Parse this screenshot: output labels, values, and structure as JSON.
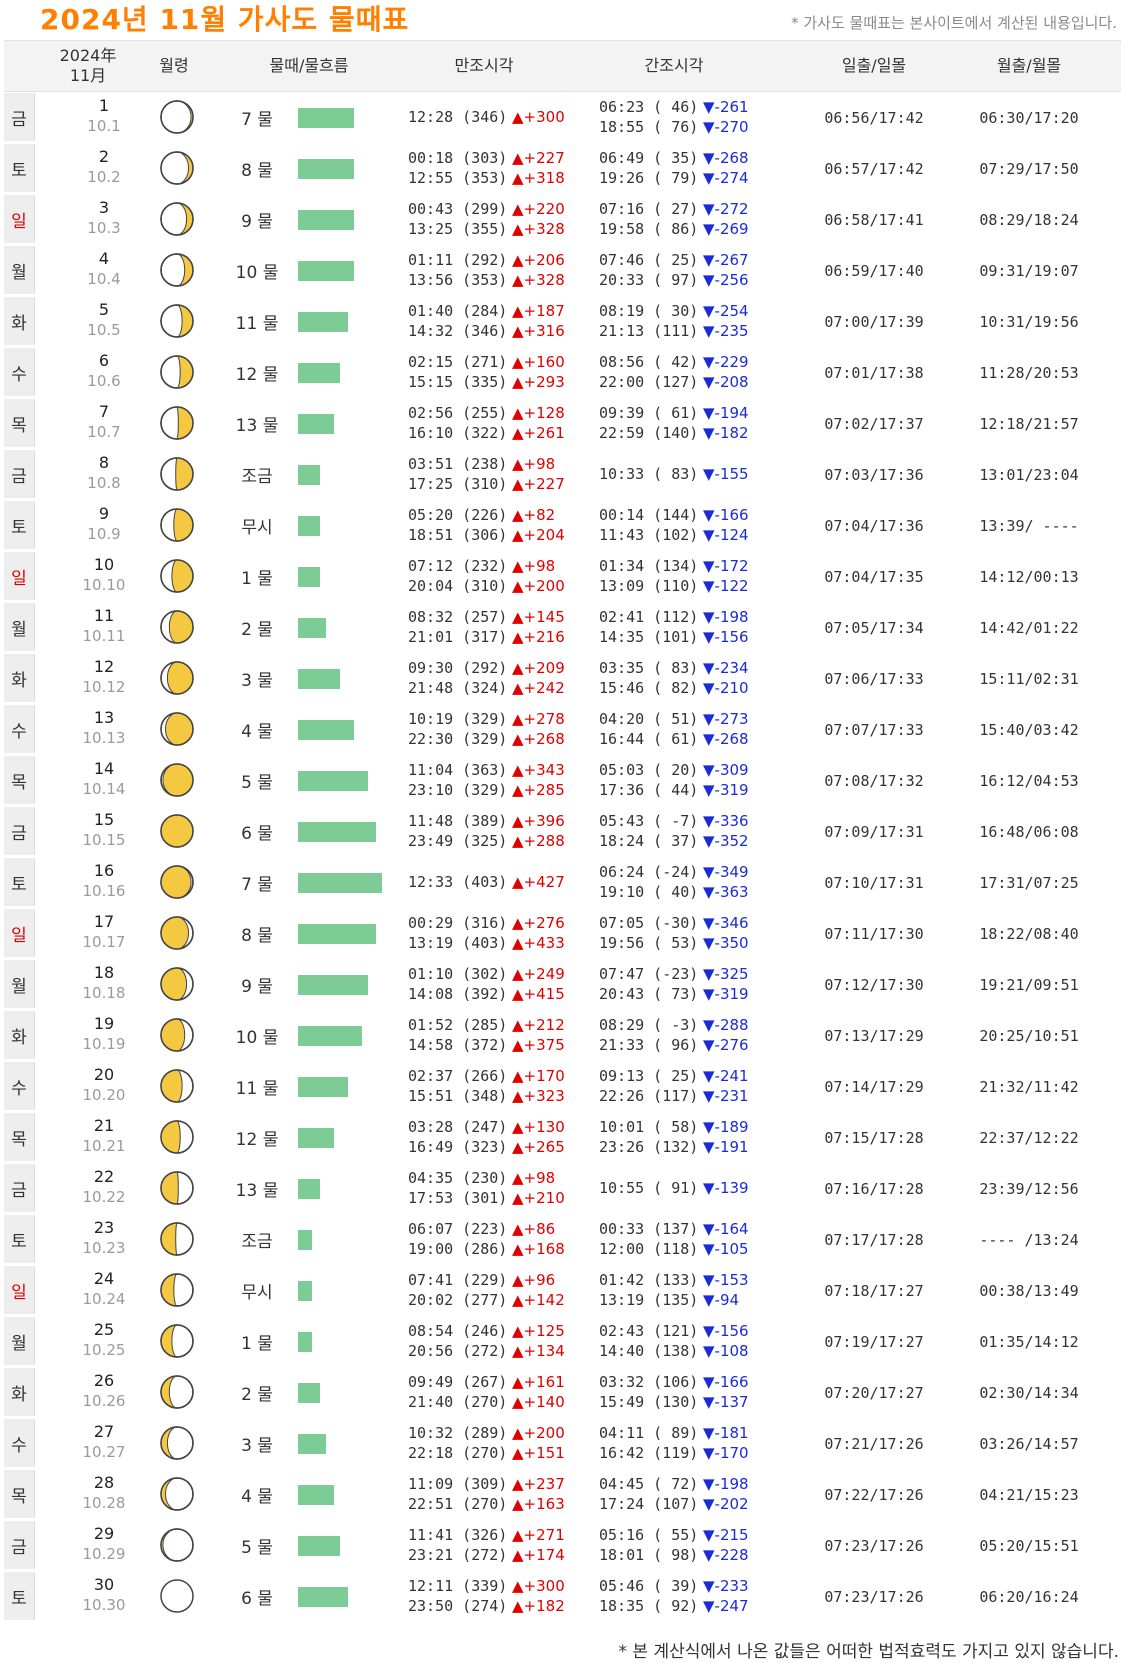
{
  "header": {
    "title": "2024년  11월  가사도  물때표",
    "note": "* 가사도 물때표는 본사이트에서 계산된 내용입니다."
  },
  "columns": {
    "date_line1": "2024年",
    "date_line2": "11月",
    "moon_age": "월령",
    "tide": "물때/물흐름",
    "high": "만조시각",
    "low": "간조시각",
    "sun": "일출/일몰",
    "moon_rs": "월출/월몰"
  },
  "colors": {
    "title": "#ff8000",
    "bar": "#7dcb95",
    "up": "#e00000",
    "down": "#1a2bd8",
    "sunday": "#e00000",
    "moon": "#f5c842"
  },
  "rows": [
    {
      "dow": "금",
      "sun": false,
      "day": "1",
      "lunar": "10.1",
      "tide": "7 물",
      "flow": 56,
      "phase": 0.03,
      "highs": [
        [
          "12:28 (346)",
          "+300"
        ]
      ],
      "lows": [
        [
          "06:23 ( 46)",
          "-261"
        ],
        [
          "18:55 ( 76)",
          "-270"
        ]
      ],
      "sunrs": "06:56/17:42",
      "moonrs": "06:30/17:20"
    },
    {
      "dow": "토",
      "sun": false,
      "day": "2",
      "lunar": "10.2",
      "tide": "8 물",
      "flow": 56,
      "phase": 0.07,
      "highs": [
        [
          "00:18 (303)",
          "+227"
        ],
        [
          "12:55 (353)",
          "+318"
        ]
      ],
      "lows": [
        [
          "06:49 ( 35)",
          "-268"
        ],
        [
          "19:26 ( 79)",
          "-274"
        ]
      ],
      "sunrs": "06:57/17:42",
      "moonrs": "07:29/17:50"
    },
    {
      "dow": "일",
      "sun": true,
      "day": "3",
      "lunar": "10.3",
      "tide": "9 물",
      "flow": 56,
      "phase": 0.1,
      "highs": [
        [
          "00:43 (299)",
          "+220"
        ],
        [
          "13:25 (355)",
          "+328"
        ]
      ],
      "lows": [
        [
          "07:16 ( 27)",
          "-272"
        ],
        [
          "19:58 ( 86)",
          "-269"
        ]
      ],
      "sunrs": "06:58/17:41",
      "moonrs": "08:29/18:24"
    },
    {
      "dow": "월",
      "sun": false,
      "day": "4",
      "lunar": "10.4",
      "tide": "10 물",
      "flow": 56,
      "phase": 0.13,
      "highs": [
        [
          "01:11 (292)",
          "+206"
        ],
        [
          "13:56 (353)",
          "+328"
        ]
      ],
      "lows": [
        [
          "07:46 ( 25)",
          "-267"
        ],
        [
          "20:33 ( 97)",
          "-256"
        ]
      ],
      "sunrs": "06:59/17:40",
      "moonrs": "09:31/19:07"
    },
    {
      "dow": "화",
      "sun": false,
      "day": "5",
      "lunar": "10.5",
      "tide": "11 물",
      "flow": 50,
      "phase": 0.17,
      "highs": [
        [
          "01:40 (284)",
          "+187"
        ],
        [
          "14:32 (346)",
          "+316"
        ]
      ],
      "lows": [
        [
          "08:19 ( 30)",
          "-254"
        ],
        [
          "21:13 (111)",
          "-235"
        ]
      ],
      "sunrs": "07:00/17:39",
      "moonrs": "10:31/19:56"
    },
    {
      "dow": "수",
      "sun": false,
      "day": "6",
      "lunar": "10.6",
      "tide": "12 물",
      "flow": 42,
      "phase": 0.2,
      "highs": [
        [
          "02:15 (271)",
          "+160"
        ],
        [
          "15:15 (335)",
          "+293"
        ]
      ],
      "lows": [
        [
          "08:56 ( 42)",
          "-229"
        ],
        [
          "22:00 (127)",
          "-208"
        ]
      ],
      "sunrs": "07:01/17:38",
      "moonrs": "11:28/20:53"
    },
    {
      "dow": "목",
      "sun": false,
      "day": "7",
      "lunar": "10.7",
      "tide": "13 물",
      "flow": 36,
      "phase": 0.23,
      "highs": [
        [
          "02:56 (255)",
          "+128"
        ],
        [
          "16:10 (322)",
          "+261"
        ]
      ],
      "lows": [
        [
          "09:39 ( 61)",
          "-194"
        ],
        [
          "22:59 (140)",
          "-182"
        ]
      ],
      "sunrs": "07:02/17:37",
      "moonrs": "12:18/21:57"
    },
    {
      "dow": "금",
      "sun": false,
      "day": "8",
      "lunar": "10.8",
      "tide": "조금",
      "flow": 22,
      "phase": 0.27,
      "highs": [
        [
          "03:51 (238)",
          "+98"
        ],
        [
          "17:25 (310)",
          "+227"
        ]
      ],
      "lows": [
        [
          "10:33 ( 83)",
          "-155"
        ]
      ],
      "sunrs": "07:03/17:36",
      "moonrs": "13:01/23:04"
    },
    {
      "dow": "토",
      "sun": false,
      "day": "9",
      "lunar": "10.9",
      "tide": "무시",
      "flow": 22,
      "phase": 0.3,
      "highs": [
        [
          "05:20 (226)",
          "+82"
        ],
        [
          "18:51 (306)",
          "+204"
        ]
      ],
      "lows": [
        [
          "00:14 (144)",
          "-166"
        ],
        [
          "11:43 (102)",
          "-124"
        ]
      ],
      "sunrs": "07:04/17:36",
      "moonrs": "13:39/ ----"
    },
    {
      "dow": "일",
      "sun": true,
      "day": "10",
      "lunar": "10.10",
      "tide": "1 물",
      "flow": 22,
      "phase": 0.33,
      "highs": [
        [
          "07:12 (232)",
          "+98"
        ],
        [
          "20:04 (310)",
          "+200"
        ]
      ],
      "lows": [
        [
          "01:34 (134)",
          "-172"
        ],
        [
          "13:09 (110)",
          "-122"
        ]
      ],
      "sunrs": "07:04/17:35",
      "moonrs": "14:12/00:13"
    },
    {
      "dow": "월",
      "sun": false,
      "day": "11",
      "lunar": "10.11",
      "tide": "2 물",
      "flow": 28,
      "phase": 0.37,
      "highs": [
        [
          "08:32 (257)",
          "+145"
        ],
        [
          "21:01 (317)",
          "+216"
        ]
      ],
      "lows": [
        [
          "02:41 (112)",
          "-198"
        ],
        [
          "14:35 (101)",
          "-156"
        ]
      ],
      "sunrs": "07:05/17:34",
      "moonrs": "14:42/01:22"
    },
    {
      "dow": "화",
      "sun": false,
      "day": "12",
      "lunar": "10.12",
      "tide": "3 물",
      "flow": 42,
      "phase": 0.4,
      "highs": [
        [
          "09:30 (292)",
          "+209"
        ],
        [
          "21:48 (324)",
          "+242"
        ]
      ],
      "lows": [
        [
          "03:35 ( 83)",
          "-234"
        ],
        [
          "15:46 ( 82)",
          "-210"
        ]
      ],
      "sunrs": "07:06/17:33",
      "moonrs": "15:11/02:31"
    },
    {
      "dow": "수",
      "sun": false,
      "day": "13",
      "lunar": "10.13",
      "tide": "4 물",
      "flow": 56,
      "phase": 0.43,
      "highs": [
        [
          "10:19 (329)",
          "+278"
        ],
        [
          "22:30 (329)",
          "+268"
        ]
      ],
      "lows": [
        [
          "04:20 ( 51)",
          "-273"
        ],
        [
          "16:44 ( 61)",
          "-268"
        ]
      ],
      "sunrs": "07:07/17:33",
      "moonrs": "15:40/03:42"
    },
    {
      "dow": "목",
      "sun": false,
      "day": "14",
      "lunar": "10.14",
      "tide": "5 물",
      "flow": 70,
      "phase": 0.47,
      "highs": [
        [
          "11:04 (363)",
          "+343"
        ],
        [
          "23:10 (329)",
          "+285"
        ]
      ],
      "lows": [
        [
          "05:03 ( 20)",
          "-309"
        ],
        [
          "17:36 ( 44)",
          "-319"
        ]
      ],
      "sunrs": "07:08/17:32",
      "moonrs": "16:12/04:53"
    },
    {
      "dow": "금",
      "sun": false,
      "day": "15",
      "lunar": "10.15",
      "tide": "6 물",
      "flow": 78,
      "phase": 0.5,
      "highs": [
        [
          "11:48 (389)",
          "+396"
        ],
        [
          "23:49 (325)",
          "+288"
        ]
      ],
      "lows": [
        [
          "05:43 ( -7)",
          "-336"
        ],
        [
          "18:24 ( 37)",
          "-352"
        ]
      ],
      "sunrs": "07:09/17:31",
      "moonrs": "16:48/06:08"
    },
    {
      "dow": "토",
      "sun": false,
      "day": "16",
      "lunar": "10.16",
      "tide": "7 물",
      "flow": 84,
      "phase": 0.53,
      "highs": [
        [
          "12:33 (403)",
          "+427"
        ]
      ],
      "lows": [
        [
          "06:24 (-24)",
          "-349"
        ],
        [
          "19:10 ( 40)",
          "-363"
        ]
      ],
      "sunrs": "07:10/17:31",
      "moonrs": "17:31/07:25"
    },
    {
      "dow": "일",
      "sun": true,
      "day": "17",
      "lunar": "10.17",
      "tide": "8 물",
      "flow": 78,
      "phase": 0.57,
      "highs": [
        [
          "00:29 (316)",
          "+276"
        ],
        [
          "13:19 (403)",
          "+433"
        ]
      ],
      "lows": [
        [
          "07:05 (-30)",
          "-346"
        ],
        [
          "19:56 ( 53)",
          "-350"
        ]
      ],
      "sunrs": "07:11/17:30",
      "moonrs": "18:22/08:40"
    },
    {
      "dow": "월",
      "sun": false,
      "day": "18",
      "lunar": "10.18",
      "tide": "9 물",
      "flow": 70,
      "phase": 0.6,
      "highs": [
        [
          "01:10 (302)",
          "+249"
        ],
        [
          "14:08 (392)",
          "+415"
        ]
      ],
      "lows": [
        [
          "07:47 (-23)",
          "-325"
        ],
        [
          "20:43 ( 73)",
          "-319"
        ]
      ],
      "sunrs": "07:12/17:30",
      "moonrs": "19:21/09:51"
    },
    {
      "dow": "화",
      "sun": false,
      "day": "19",
      "lunar": "10.19",
      "tide": "10 물",
      "flow": 64,
      "phase": 0.63,
      "highs": [
        [
          "01:52 (285)",
          "+212"
        ],
        [
          "14:58 (372)",
          "+375"
        ]
      ],
      "lows": [
        [
          "08:29 ( -3)",
          "-288"
        ],
        [
          "21:33 ( 96)",
          "-276"
        ]
      ],
      "sunrs": "07:13/17:29",
      "moonrs": "20:25/10:51"
    },
    {
      "dow": "수",
      "sun": false,
      "day": "20",
      "lunar": "10.20",
      "tide": "11 물",
      "flow": 50,
      "phase": 0.67,
      "highs": [
        [
          "02:37 (266)",
          "+170"
        ],
        [
          "15:51 (348)",
          "+323"
        ]
      ],
      "lows": [
        [
          "09:13 ( 25)",
          "-241"
        ],
        [
          "22:26 (117)",
          "-231"
        ]
      ],
      "sunrs": "07:14/17:29",
      "moonrs": "21:32/11:42"
    },
    {
      "dow": "목",
      "sun": false,
      "day": "21",
      "lunar": "10.21",
      "tide": "12 물",
      "flow": 36,
      "phase": 0.7,
      "highs": [
        [
          "03:28 (247)",
          "+130"
        ],
        [
          "16:49 (323)",
          "+265"
        ]
      ],
      "lows": [
        [
          "10:01 ( 58)",
          "-189"
        ],
        [
          "23:26 (132)",
          "-191"
        ]
      ],
      "sunrs": "07:15/17:28",
      "moonrs": "22:37/12:22"
    },
    {
      "dow": "금",
      "sun": false,
      "day": "22",
      "lunar": "10.22",
      "tide": "13 물",
      "flow": 22,
      "phase": 0.73,
      "highs": [
        [
          "04:35 (230)",
          "+98"
        ],
        [
          "17:53 (301)",
          "+210"
        ]
      ],
      "lows": [
        [
          "10:55 ( 91)",
          "-139"
        ]
      ],
      "sunrs": "07:16/17:28",
      "moonrs": "23:39/12:56"
    },
    {
      "dow": "토",
      "sun": false,
      "day": "23",
      "lunar": "10.23",
      "tide": "조금",
      "flow": 14,
      "phase": 0.77,
      "highs": [
        [
          "06:07 (223)",
          "+86"
        ],
        [
          "19:00 (286)",
          "+168"
        ]
      ],
      "lows": [
        [
          "00:33 (137)",
          "-164"
        ],
        [
          "12:00 (118)",
          "-105"
        ]
      ],
      "sunrs": "07:17/17:28",
      "moonrs": "---- /13:24"
    },
    {
      "dow": "일",
      "sun": true,
      "day": "24",
      "lunar": "10.24",
      "tide": "무시",
      "flow": 14,
      "phase": 0.8,
      "highs": [
        [
          "07:41 (229)",
          "+96"
        ],
        [
          "20:02 (277)",
          "+142"
        ]
      ],
      "lows": [
        [
          "01:42 (133)",
          "-153"
        ],
        [
          "13:19 (135)",
          "-94"
        ]
      ],
      "sunrs": "07:18/17:27",
      "moonrs": "00:38/13:49"
    },
    {
      "dow": "월",
      "sun": false,
      "day": "25",
      "lunar": "10.25",
      "tide": "1 물",
      "flow": 14,
      "phase": 0.83,
      "highs": [
        [
          "08:54 (246)",
          "+125"
        ],
        [
          "20:56 (272)",
          "+134"
        ]
      ],
      "lows": [
        [
          "02:43 (121)",
          "-156"
        ],
        [
          "14:40 (138)",
          "-108"
        ]
      ],
      "sunrs": "07:19/17:27",
      "moonrs": "01:35/14:12"
    },
    {
      "dow": "화",
      "sun": false,
      "day": "26",
      "lunar": "10.26",
      "tide": "2 물",
      "flow": 22,
      "phase": 0.87,
      "highs": [
        [
          "09:49 (267)",
          "+161"
        ],
        [
          "21:40 (270)",
          "+140"
        ]
      ],
      "lows": [
        [
          "03:32 (106)",
          "-166"
        ],
        [
          "15:49 (130)",
          "-137"
        ]
      ],
      "sunrs": "07:20/17:27",
      "moonrs": "02:30/14:34"
    },
    {
      "dow": "수",
      "sun": false,
      "day": "27",
      "lunar": "10.27",
      "tide": "3 물",
      "flow": 28,
      "phase": 0.9,
      "highs": [
        [
          "10:32 (289)",
          "+200"
        ],
        [
          "22:18 (270)",
          "+151"
        ]
      ],
      "lows": [
        [
          "04:11 ( 89)",
          "-181"
        ],
        [
          "16:42 (119)",
          "-170"
        ]
      ],
      "sunrs": "07:21/17:26",
      "moonrs": "03:26/14:57"
    },
    {
      "dow": "목",
      "sun": false,
      "day": "28",
      "lunar": "10.28",
      "tide": "4 물",
      "flow": 36,
      "phase": 0.93,
      "highs": [
        [
          "11:09 (309)",
          "+237"
        ],
        [
          "22:51 (270)",
          "+163"
        ]
      ],
      "lows": [
        [
          "04:45 ( 72)",
          "-198"
        ],
        [
          "17:24 (107)",
          "-202"
        ]
      ],
      "sunrs": "07:22/17:26",
      "moonrs": "04:21/15:23"
    },
    {
      "dow": "금",
      "sun": false,
      "day": "29",
      "lunar": "10.29",
      "tide": "5 물",
      "flow": 42,
      "phase": 0.97,
      "highs": [
        [
          "11:41 (326)",
          "+271"
        ],
        [
          "23:21 (272)",
          "+174"
        ]
      ],
      "lows": [
        [
          "05:16 ( 55)",
          "-215"
        ],
        [
          "18:01 ( 98)",
          "-228"
        ]
      ],
      "sunrs": "07:23/17:26",
      "moonrs": "05:20/15:51"
    },
    {
      "dow": "토",
      "sun": false,
      "day": "30",
      "lunar": "10.30",
      "tide": "6 물",
      "flow": 50,
      "phase": 1.0,
      "highs": [
        [
          "12:11 (339)",
          "+300"
        ],
        [
          "23:50 (274)",
          "+182"
        ]
      ],
      "lows": [
        [
          "05:46 ( 39)",
          "-233"
        ],
        [
          "18:35 ( 92)",
          "-247"
        ]
      ],
      "sunrs": "07:23/17:26",
      "moonrs": "06:20/16:24"
    }
  ],
  "footnote": "* 본 계산식에서 나온 값들은 어떠한 법적효력도 가지고 있지 않습니다."
}
